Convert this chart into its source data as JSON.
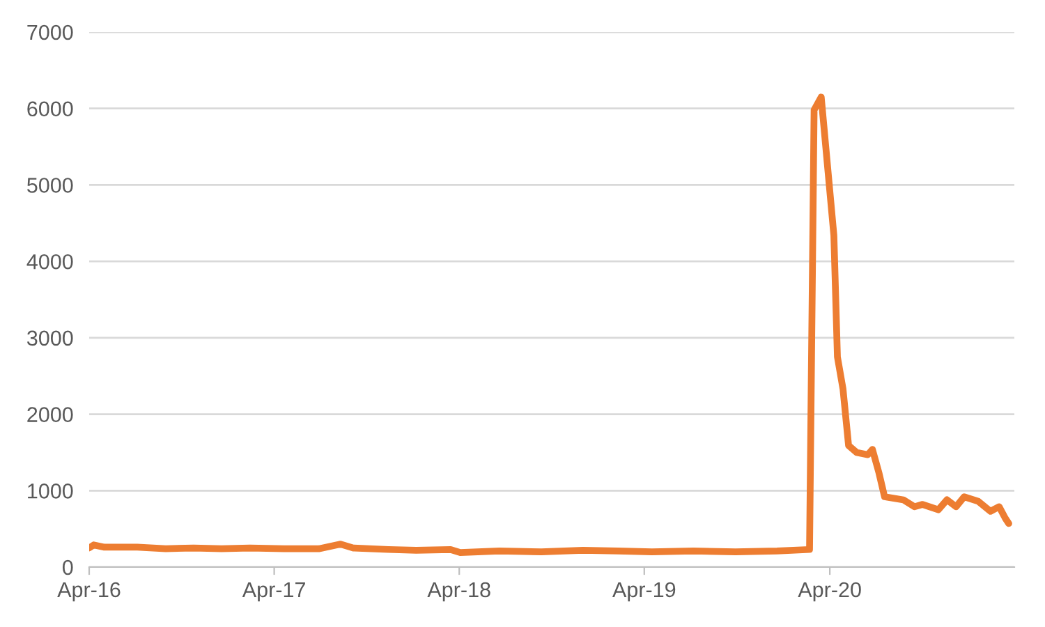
{
  "chart_data": {
    "type": "line",
    "x": [
      "2016-04-01",
      "2016-04-10",
      "2016-05-01",
      "2016-07-05",
      "2016-08-30",
      "2016-10-24",
      "2016-12-18",
      "2017-02-12",
      "2017-04-20",
      "2017-06-28",
      "2017-08-10",
      "2017-09-04",
      "2017-11-12",
      "2018-01-06",
      "2018-03-15",
      "2018-04-03",
      "2018-06-19",
      "2018-09-10",
      "2018-12-01",
      "2019-02-08",
      "2019-04-16",
      "2019-07-07",
      "2019-09-28",
      "2019-12-19",
      "2020-02-21",
      "2020-03-01",
      "2020-03-15",
      "2020-04-09",
      "2020-04-16",
      "2020-04-27",
      "2020-05-08",
      "2020-05-24",
      "2020-06-15",
      "2020-06-24",
      "2020-07-07",
      "2020-07-18",
      "2020-08-24",
      "2020-09-15",
      "2020-10-01",
      "2020-11-01",
      "2020-11-18",
      "2020-12-06",
      "2020-12-22",
      "2021-01-19",
      "2021-02-12",
      "2021-03-01",
      "2021-03-13",
      "2021-03-20"
    ],
    "series": [
      {
        "color": "#ed7d31",
        "values": [
          250,
          290,
          260,
          260,
          240,
          250,
          240,
          250,
          240,
          240,
          300,
          250,
          230,
          220,
          230,
          190,
          210,
          200,
          220,
          210,
          200,
          210,
          200,
          210,
          230,
          5980,
          6150,
          4340,
          2750,
          2330,
          1590,
          1500,
          1470,
          1540,
          1230,
          920,
          880,
          790,
          820,
          750,
          880,
          790,
          920,
          860,
          730,
          790,
          640,
          570
        ]
      }
    ],
    "xlim": [
      "2016-04-01",
      "2021-03-31"
    ],
    "xticks": [
      {
        "value": "2016-04-01",
        "label": "Apr-16"
      },
      {
        "value": "2017-04-01",
        "label": "Apr-17"
      },
      {
        "value": "2018-04-01",
        "label": "Apr-18"
      },
      {
        "value": "2019-04-01",
        "label": "Apr-19"
      },
      {
        "value": "2020-04-01",
        "label": "Apr-20"
      }
    ],
    "ylim": [
      0,
      7000
    ],
    "yticks": [
      0,
      1000,
      2000,
      3000,
      4000,
      5000,
      6000,
      7000
    ],
    "grid": "y",
    "legend": false,
    "marker": "none",
    "line_style": "solid"
  }
}
